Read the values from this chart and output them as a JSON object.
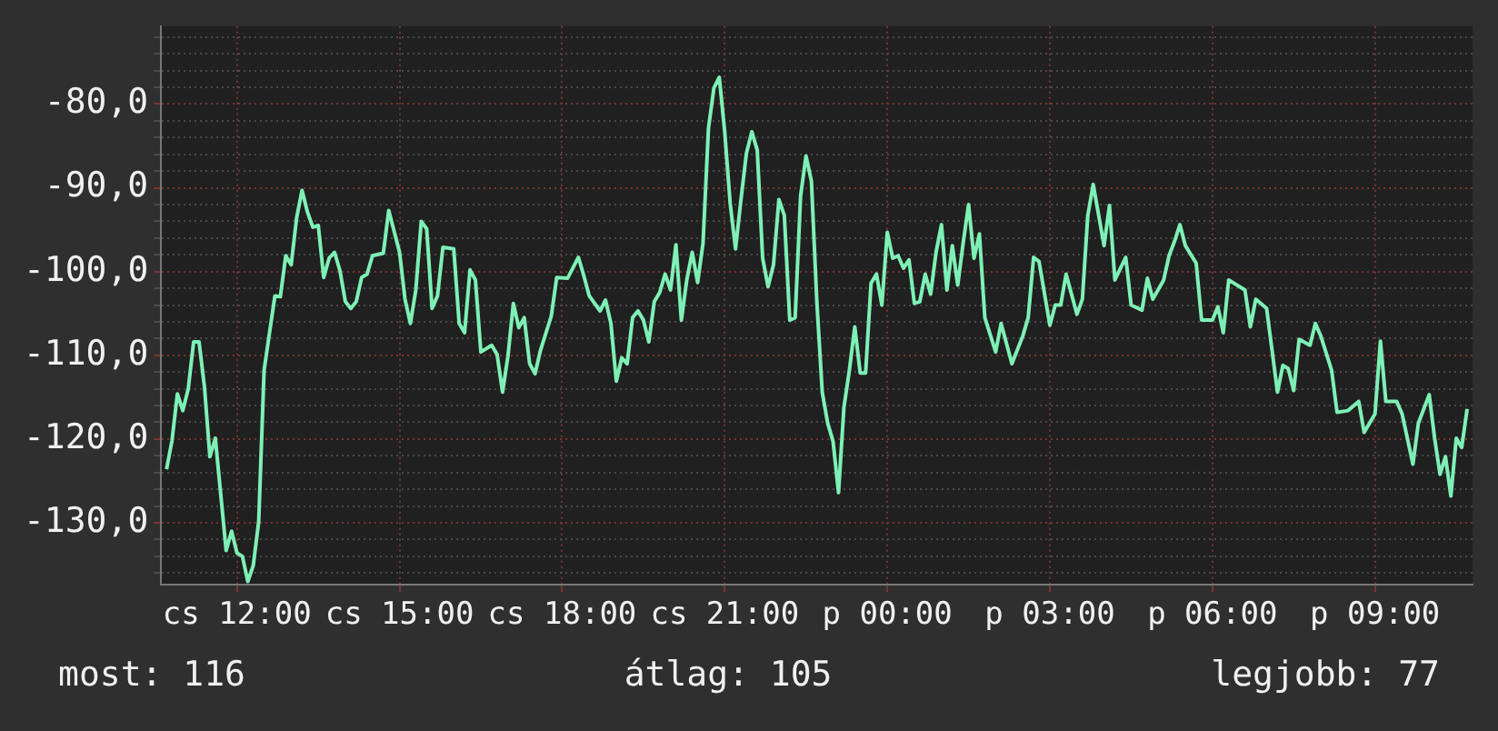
{
  "chart_data": {
    "type": "line",
    "annotations": [
      "most: 116",
      "átlag: 105",
      "legjobb: 77"
    ],
    "categories": [
      null,
      null,
      null,
      null,
      null,
      null,
      null,
      null,
      null,
      null,
      null,
      null,
      null,
      null,
      "cs 12:00",
      null,
      null,
      null,
      null,
      null,
      null,
      null,
      null,
      null,
      null,
      null,
      null,
      null,
      null,
      null,
      null,
      null,
      null,
      null,
      null,
      null,
      null,
      null,
      null,
      null,
      null,
      null,
      null,
      null,
      "cs 15:00",
      null,
      null,
      null,
      null,
      null,
      null,
      null,
      null,
      null,
      null,
      null,
      null,
      null,
      null,
      null,
      null,
      null,
      null,
      null,
      null,
      null,
      null,
      null,
      null,
      null,
      null,
      null,
      null,
      null,
      "cs 18:00",
      null,
      null,
      null,
      null,
      null,
      null,
      null,
      null,
      null,
      null,
      null,
      null,
      null,
      null,
      null,
      null,
      null,
      null,
      null,
      null,
      null,
      null,
      null,
      null,
      null,
      null,
      null,
      null,
      null,
      "cs 21:00",
      null,
      null,
      null,
      null,
      null,
      null,
      null,
      null,
      null,
      null,
      null,
      null,
      null,
      null,
      null,
      null,
      null,
      null,
      null,
      null,
      null,
      null,
      null,
      null,
      null,
      null,
      null,
      null,
      null,
      "p 00:00",
      null,
      null,
      null,
      null,
      null,
      null,
      null,
      null,
      null,
      null,
      null,
      null,
      null,
      null,
      null,
      null,
      null,
      null,
      null,
      null,
      null,
      null,
      null,
      null,
      null,
      null,
      null,
      null,
      null,
      "p 03:00",
      null,
      null,
      null,
      null,
      null,
      null,
      null,
      null,
      null,
      null,
      null,
      null,
      null,
      null,
      null,
      null,
      null,
      null,
      null,
      null,
      null,
      null,
      null,
      null,
      null,
      null,
      null,
      null,
      null,
      "p 06:00",
      null,
      null,
      null,
      null,
      null,
      null,
      null,
      null,
      null,
      null,
      null,
      null,
      null,
      null,
      null,
      null,
      null,
      null,
      null,
      null,
      null,
      null,
      null,
      null,
      null,
      null,
      null,
      null,
      null,
      "p 09:00",
      null,
      null,
      null,
      null,
      null,
      null,
      null,
      null,
      null,
      null,
      null,
      null,
      null,
      null,
      null,
      null,
      null,
      null
    ],
    "series": [
      {
        "color": "#7ef0b6",
        "values": [
          null,
          -123.6,
          -120.2,
          -114.6,
          -116.6,
          -114,
          -108.4,
          -108.4,
          -113.8,
          -122.1,
          -119.9,
          -126.6,
          -133.3,
          -131,
          -133.6,
          -134,
          -137,
          -135.1,
          -129.9,
          -111.8,
          -107.3,
          -102.9,
          -103,
          -98.1,
          -99.2,
          -93.6,
          -90.3,
          -92.9,
          -94.7,
          -94.5,
          -100.7,
          -98.4,
          -97.7,
          -99.9,
          -103.6,
          -104.4,
          -103.6,
          -100.7,
          -100.3,
          -98.1,
          null,
          -97.8,
          -92.7,
          null,
          -97.7,
          -103.3,
          -106.2,
          -102.2,
          -94,
          -94.9,
          -104.4,
          -102.9,
          -97.1,
          null,
          -97.3,
          -106.2,
          -107.3,
          -99.8,
          -101,
          -109.6,
          null,
          -108.8,
          -109.9,
          -114.4,
          -110.1,
          -103.8,
          -106.7,
          -105.5,
          -111,
          -112.2,
          -109.4,
          null,
          -105.3,
          -100.7,
          null,
          -100.8,
          null,
          -98.3,
          -100.5,
          -102.9,
          null,
          -104.7,
          -103.4,
          -106.2,
          -113.1,
          -110.3,
          -111,
          -105.5,
          -104.7,
          -105.8,
          -108.4,
          -103.6,
          -102.5,
          -100.3,
          -102.2,
          -96.8,
          -105.8,
          -101,
          -97.7,
          -101.3,
          -96.6,
          -82.9,
          -78.1,
          -76.8,
          -83.3,
          -91.8,
          -97.3,
          -91.4,
          -85.9,
          -83.3,
          -85.5,
          -98.4,
          -101.8,
          -99.2,
          -91.4,
          -93.3,
          -105.8,
          -105.5,
          -91,
          -86.2,
          -89.2,
          -103.6,
          -114.4,
          -118.1,
          -120.3,
          -126.4,
          -116.2,
          -111.8,
          -106.6,
          -112.1,
          -112.1,
          -101.4,
          -100.3,
          -104,
          -95.3,
          -98.4,
          -98.1,
          -99.6,
          -98.6,
          -103.8,
          -103.6,
          -100.3,
          -102.7,
          -97.7,
          -94.4,
          -102.2,
          -96.9,
          -101.6,
          -96.6,
          -92,
          -98.4,
          -95.5,
          -105.5,
          null,
          -109.6,
          -106.2,
          null,
          -111,
          null,
          -107.7,
          -105.5,
          -98.3,
          -98.8,
          null,
          -106.4,
          -104,
          -104,
          -100.3,
          null,
          -105.1,
          -103.3,
          -93.3,
          -89.6,
          null,
          -96.9,
          -92.1,
          -101,
          null,
          -98.3,
          -104,
          null,
          -104.6,
          -100.8,
          -103.3,
          null,
          -101,
          -98.1,
          -96.4,
          -94.4,
          -96.9,
          null,
          -99,
          -105.8,
          null,
          -105.8,
          -104.2,
          -107.3,
          -101,
          null,
          null,
          -102.2,
          -106.6,
          -103.3,
          null,
          -104.4,
          null,
          -114.4,
          -111.2,
          -111.6,
          -114.2,
          -108.1,
          null,
          -108.8,
          -106.2,
          -107.7,
          null,
          -111.8,
          -116.8,
          null,
          -116.6,
          null,
          -115.5,
          -119.2,
          null,
          -117,
          -108.3,
          -115.5,
          null,
          -115.5,
          -117,
          null,
          -123,
          -118.1,
          null,
          -114.7,
          -119.9,
          -124.2,
          -122.1,
          -126.8,
          -119.9,
          -121,
          -116.4,
          null
        ]
      }
    ],
    "ylim": [
      -137.4,
      -70.7
    ],
    "yticks": [
      {
        "value": -136,
        "label": null
      },
      {
        "value": -134,
        "label": null
      },
      {
        "value": -132,
        "label": null
      },
      {
        "value": -130,
        "label": "-130,0"
      },
      {
        "value": -128,
        "label": null
      },
      {
        "value": -126,
        "label": null
      },
      {
        "value": -124,
        "label": null
      },
      {
        "value": -122,
        "label": null
      },
      {
        "value": -120,
        "label": "-120,0"
      },
      {
        "value": -118,
        "label": null
      },
      {
        "value": -116,
        "label": null
      },
      {
        "value": -114,
        "label": null
      },
      {
        "value": -112,
        "label": null
      },
      {
        "value": -110,
        "label": "-110,0"
      },
      {
        "value": -108,
        "label": null
      },
      {
        "value": -106,
        "label": null
      },
      {
        "value": -104,
        "label": null
      },
      {
        "value": -102,
        "label": null
      },
      {
        "value": -100,
        "label": "-100,0"
      },
      {
        "value": -98,
        "label": null
      },
      {
        "value": -96,
        "label": null
      },
      {
        "value": -94,
        "label": null
      },
      {
        "value": -92,
        "label": null
      },
      {
        "value": -90,
        "label": "-90,0"
      },
      {
        "value": -88,
        "label": null
      },
      {
        "value": -86,
        "label": null
      },
      {
        "value": -84,
        "label": null
      },
      {
        "value": -82,
        "label": null
      },
      {
        "value": -80,
        "label": "-80,0"
      },
      {
        "value": -78,
        "label": null
      },
      {
        "value": -76,
        "label": null
      },
      {
        "value": -74,
        "label": null
      },
      {
        "value": -72,
        "label": null
      }
    ],
    "grid": true,
    "marker": "none",
    "line_style": "solid"
  }
}
